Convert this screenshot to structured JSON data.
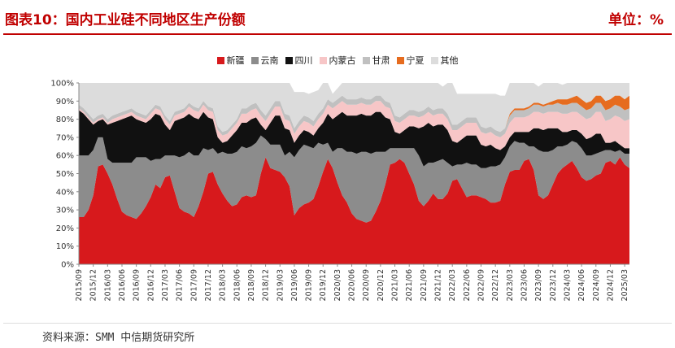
{
  "header": {
    "title": "图表10：国内工业硅不同地区生产份额",
    "unit": "单位：%"
  },
  "source": "资料来源：SMM 中信期货研究所",
  "chart_data": {
    "type": "area",
    "stacked": true,
    "ylim": [
      0,
      100
    ],
    "yticks": [
      "0%",
      "10%",
      "20%",
      "30%",
      "40%",
      "50%",
      "60%",
      "70%",
      "80%",
      "90%",
      "100%"
    ],
    "xtick_labels": [
      "2015/09",
      "2015/12",
      "2016/03",
      "2016/06",
      "2016/09",
      "2016/12",
      "2017/03",
      "2017/06",
      "2017/09",
      "2017/12",
      "2018/03",
      "2018/06",
      "2018/09",
      "2018/12",
      "2019/03",
      "2019/06",
      "2019/09",
      "2019/12",
      "2020/03",
      "2020/06",
      "2020/09",
      "2020/12",
      "2021/03",
      "2021/06",
      "2021/09",
      "2021/12",
      "2022/03",
      "2022/06",
      "2022/09",
      "2022/12",
      "2023/03",
      "2023/06",
      "2023/09",
      "2023/12",
      "2024/03",
      "2024/06",
      "2024/09",
      "2024/12",
      "2025/03"
    ],
    "legend_position": "top",
    "series": [
      {
        "name": "新疆",
        "color": "#d7191c",
        "values": [
          26,
          26,
          30,
          38,
          54,
          55,
          50,
          44,
          36,
          29,
          27,
          26,
          25,
          28,
          32,
          37,
          44,
          42,
          48,
          49,
          40,
          31,
          29,
          28,
          26,
          32,
          40,
          50,
          51,
          44,
          39,
          35,
          32,
          33,
          37,
          38,
          37,
          38,
          50,
          59,
          53,
          52,
          51,
          48,
          43,
          27,
          31,
          33,
          34,
          36,
          43,
          51,
          58,
          53,
          45,
          38,
          34,
          28,
          25,
          24,
          23,
          24,
          29,
          35,
          44,
          55,
          56,
          58,
          56,
          50,
          44,
          35,
          32,
          35,
          39,
          36,
          36,
          39,
          46,
          47,
          42,
          37,
          38,
          38,
          37,
          36,
          34,
          34,
          35,
          44,
          51,
          52,
          52,
          57,
          58,
          52,
          38,
          36,
          38,
          44,
          50,
          53,
          55,
          57,
          53,
          48,
          46,
          47,
          49,
          50,
          56,
          57,
          55,
          59,
          55,
          53
        ]
      },
      {
        "name": "云南",
        "color": "#8c8c8c",
        "values": [
          34,
          34,
          30,
          25,
          16,
          15,
          8,
          12,
          20,
          27,
          29,
          30,
          34,
          31,
          27,
          20,
          14,
          16,
          12,
          11,
          20,
          28,
          31,
          34,
          34,
          28,
          24,
          13,
          13,
          17,
          23,
          26,
          29,
          29,
          28,
          26,
          28,
          29,
          21,
          10,
          13,
          14,
          15,
          12,
          19,
          32,
          32,
          33,
          31,
          28,
          24,
          15,
          9,
          9,
          19,
          26,
          28,
          34,
          36,
          38,
          39,
          37,
          33,
          27,
          18,
          9,
          8,
          6,
          8,
          14,
          20,
          25,
          22,
          21,
          17,
          21,
          22,
          17,
          8,
          8,
          13,
          19,
          17,
          17,
          16,
          17,
          20,
          20,
          20,
          15,
          14,
          16,
          15,
          10,
          7,
          13,
          25,
          26,
          24,
          19,
          15,
          12,
          11,
          11,
          14,
          16,
          14,
          13,
          12,
          12,
          7,
          6,
          7,
          4,
          6,
          8
        ]
      },
      {
        "name": "四川",
        "color": "#111111",
        "values": [
          25,
          23,
          20,
          14,
          9,
          10,
          19,
          22,
          23,
          24,
          25,
          26,
          21,
          20,
          19,
          23,
          25,
          24,
          17,
          14,
          19,
          21,
          21,
          21,
          21,
          20,
          20,
          18,
          16,
          9,
          5,
          7,
          10,
          12,
          13,
          14,
          15,
          14,
          6,
          5,
          12,
          16,
          16,
          15,
          12,
          8,
          8,
          8,
          8,
          7,
          8,
          12,
          16,
          18,
          18,
          20,
          20,
          20,
          21,
          21,
          20,
          21,
          22,
          22,
          19,
          16,
          9,
          8,
          10,
          12,
          12,
          15,
          22,
          22,
          20,
          20,
          19,
          18,
          14,
          12,
          14,
          15,
          16,
          16,
          13,
          12,
          12,
          10,
          8,
          6,
          5,
          5,
          6,
          6,
          8,
          10,
          12,
          12,
          13,
          12,
          10,
          8,
          7,
          6,
          7,
          8,
          9,
          10,
          11,
          10,
          4,
          4,
          6,
          3,
          3,
          3
        ]
      },
      {
        "name": "内蒙古",
        "color": "#f7c6c7",
        "values": [
          1,
          1,
          1,
          1,
          1,
          1,
          1,
          2,
          2,
          2,
          2,
          2,
          2,
          2,
          2,
          3,
          3,
          3,
          3,
          3,
          3,
          3,
          3,
          4,
          4,
          4,
          4,
          4,
          4,
          4,
          4,
          4,
          4,
          4,
          5,
          5,
          5,
          5,
          5,
          5,
          5,
          5,
          5,
          5,
          5,
          5,
          5,
          5,
          5,
          5,
          5,
          5,
          5,
          6,
          6,
          6,
          6,
          6,
          6,
          6,
          6,
          6,
          6,
          6,
          6,
          6,
          6,
          6,
          6,
          6,
          6,
          6,
          6,
          6,
          6,
          6,
          6,
          6,
          6,
          7,
          7,
          7,
          7,
          7,
          7,
          7,
          7,
          7,
          7,
          7,
          8,
          8,
          8,
          8,
          9,
          9,
          9,
          9,
          9,
          9,
          9,
          10,
          10,
          10,
          10,
          10,
          11,
          11,
          12,
          12,
          12,
          13,
          14,
          15,
          15,
          16
        ]
      },
      {
        "name": "甘肃",
        "color": "#c0c0c0",
        "values": [
          2,
          2,
          2,
          2,
          2,
          2,
          2,
          2,
          2,
          2,
          2,
          2,
          2,
          2,
          2,
          2,
          2,
          2,
          2,
          2,
          2,
          2,
          2,
          2,
          2,
          2,
          2,
          2,
          2,
          2,
          2,
          2,
          2,
          2,
          3,
          3,
          3,
          3,
          3,
          3,
          3,
          3,
          3,
          3,
          3,
          3,
          3,
          3,
          3,
          3,
          3,
          3,
          3,
          3,
          3,
          3,
          3,
          3,
          3,
          3,
          3,
          3,
          3,
          3,
          3,
          3,
          3,
          3,
          3,
          3,
          3,
          3,
          3,
          3,
          3,
          3,
          3,
          3,
          3,
          3,
          3,
          3,
          3,
          3,
          3,
          3,
          3,
          3,
          3,
          3,
          4,
          4,
          4,
          4,
          4,
          4,
          4,
          4,
          4,
          4,
          5,
          5,
          5,
          5,
          5,
          5,
          5,
          5,
          5,
          5,
          6,
          6,
          6,
          6,
          6,
          6
        ]
      },
      {
        "name": "宁夏",
        "color": "#e66c1f",
        "values": [
          0,
          0,
          0,
          0,
          0,
          0,
          0,
          0,
          0,
          0,
          0,
          0,
          0,
          0,
          0,
          0,
          0,
          0,
          0,
          0,
          0,
          0,
          0,
          0,
          0,
          0,
          0,
          0,
          0,
          0,
          0,
          0,
          0,
          0,
          0,
          0,
          0,
          0,
          0,
          0,
          0,
          0,
          0,
          0,
          0,
          0,
          0,
          0,
          0,
          0,
          0,
          0,
          0,
          0,
          0,
          0,
          0,
          0,
          0,
          0,
          0,
          0,
          0,
          0,
          0,
          0,
          0,
          0,
          0,
          0,
          0,
          0,
          0,
          0,
          0,
          0,
          0,
          0,
          0,
          0,
          0,
          0,
          0,
          0,
          0,
          0,
          0,
          0,
          0,
          0,
          1,
          1,
          1,
          1,
          1,
          1,
          1,
          1,
          1,
          2,
          2,
          3,
          3,
          3,
          4,
          4,
          4,
          4,
          4,
          4,
          5,
          5,
          5,
          6,
          6,
          7
        ]
      },
      {
        "name": "其他",
        "color": "#dcdcdc",
        "values": [
          12,
          14,
          17,
          20,
          18,
          17,
          20,
          18,
          17,
          16,
          15,
          14,
          16,
          17,
          18,
          15,
          12,
          13,
          18,
          21,
          16,
          15,
          14,
          11,
          13,
          14,
          10,
          13,
          14,
          24,
          27,
          26,
          23,
          20,
          14,
          14,
          12,
          11,
          15,
          18,
          14,
          10,
          10,
          17,
          18,
          20,
          16,
          13,
          13,
          16,
          13,
          14,
          9,
          5,
          6,
          7,
          9,
          9,
          9,
          8,
          9,
          9,
          7,
          7,
          10,
          11,
          18,
          19,
          17,
          15,
          15,
          16,
          15,
          13,
          15,
          14,
          12,
          17,
          23,
          17,
          15,
          13,
          13,
          13,
          18,
          19,
          18,
          20,
          20,
          18,
          17,
          14,
          14,
          14,
          13,
          11,
          9,
          12,
          11,
          10,
          9,
          8,
          9,
          8,
          7,
          9,
          11,
          10,
          7,
          7,
          10,
          9,
          7,
          7,
          9,
          7
        ]
      }
    ]
  }
}
